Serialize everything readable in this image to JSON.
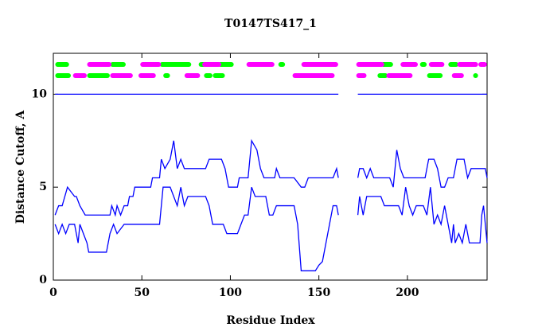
{
  "chart_data": {
    "type": "line",
    "title": "T0147TS417_1",
    "x_label": "Residue Index",
    "y_label": "Distance Cutoff, A",
    "xlim": [
      0,
      245
    ],
    "ylim": [
      0,
      12.2
    ],
    "xticks": [
      0,
      50,
      100,
      150,
      200
    ],
    "yticks": [
      0,
      5,
      10
    ],
    "series": [
      {
        "color": "#0000ff",
        "x": [
          1,
          161,
          166,
          172,
          245
        ],
        "values": [
          10,
          10,
          null,
          10,
          10
        ]
      },
      {
        "color": "#0000ff",
        "x": [
          1,
          3,
          5,
          8,
          12,
          13,
          15,
          18,
          32,
          33,
          35,
          36,
          38,
          40,
          42,
          43,
          45,
          46,
          55,
          56,
          60,
          61,
          63,
          66,
          68,
          70,
          72,
          74,
          76,
          86,
          88,
          95,
          97,
          99,
          104,
          105,
          110,
          112,
          115,
          117,
          119,
          125,
          126,
          128,
          136,
          140,
          142,
          144,
          158,
          160,
          161,
          166,
          172,
          173,
          175,
          177,
          179,
          181,
          190,
          192,
          194,
          196,
          198,
          210,
          212,
          215,
          217,
          219,
          221,
          223,
          226,
          228,
          232,
          234,
          236,
          244,
          245
        ],
        "values": [
          3.5,
          4,
          4,
          5,
          4.5,
          4.5,
          4,
          3.5,
          3.5,
          4,
          3.5,
          4,
          3.5,
          4,
          4,
          4.5,
          4.5,
          5,
          5,
          5.5,
          5.5,
          6.5,
          6,
          6.5,
          7.5,
          6,
          6.5,
          6,
          6,
          6,
          6.5,
          6.5,
          6,
          5,
          5,
          5.5,
          5.5,
          7.5,
          7,
          6,
          5.5,
          5.5,
          6,
          5.5,
          5.5,
          5,
          5,
          5.5,
          5.5,
          6,
          5.5,
          null,
          5.5,
          6,
          6,
          5.5,
          6,
          5.5,
          5.5,
          5,
          7,
          6,
          5.5,
          5.5,
          6.5,
          6.5,
          6,
          5,
          5,
          5.5,
          5.5,
          6.5,
          6.5,
          5.5,
          6,
          6,
          5.5
        ]
      },
      {
        "color": "#0000ff",
        "x": [
          1,
          3,
          5,
          7,
          9,
          12,
          13,
          14,
          15,
          17,
          19,
          20,
          30,
          32,
          34,
          36,
          40,
          60,
          61,
          62,
          66,
          68,
          70,
          72,
          74,
          76,
          84,
          86,
          88,
          90,
          96,
          98,
          104,
          106,
          108,
          110,
          112,
          114,
          120,
          122,
          124,
          126,
          136,
          138,
          140,
          148,
          150,
          152,
          154,
          156,
          158,
          160,
          161,
          166,
          172,
          173,
          175,
          177,
          185,
          187,
          195,
          197,
          199,
          201,
          203,
          205,
          209,
          211,
          213,
          215,
          217,
          219,
          221,
          222,
          224,
          225,
          226,
          227,
          229,
          231,
          233,
          235,
          237,
          241,
          242,
          243,
          244,
          245
        ],
        "values": [
          3,
          2.5,
          3,
          2.5,
          3,
          3,
          2.5,
          2,
          3,
          2.5,
          2,
          1.5,
          1.5,
          2.5,
          3,
          2.5,
          3,
          3,
          4,
          5,
          5,
          4.5,
          4,
          5,
          4,
          4.5,
          4.5,
          4.5,
          4,
          3,
          3,
          2.5,
          2.5,
          3,
          3.5,
          3.5,
          5,
          4.5,
          4.5,
          3.5,
          3.5,
          4,
          4,
          3,
          0.5,
          0.5,
          0.8,
          1,
          2,
          3,
          4,
          4,
          3.5,
          null,
          3.5,
          4.5,
          3.5,
          4.5,
          4.5,
          4,
          4,
          3.5,
          5,
          4,
          3.5,
          4,
          4,
          3.5,
          5,
          3,
          3.5,
          3,
          4,
          3.5,
          2.5,
          2,
          3,
          2,
          2.5,
          2,
          3,
          2,
          2,
          2,
          3.5,
          4,
          3,
          2
        ]
      }
    ],
    "bands": [
      {
        "color": "#00ff00",
        "y": 11.6,
        "ranges": [
          [
            2,
            8
          ],
          [
            33,
            40
          ],
          [
            61,
            77
          ],
          [
            83,
            87
          ],
          [
            94,
            101
          ],
          [
            128,
            130
          ],
          [
            186,
            191
          ],
          [
            208,
            210
          ],
          [
            224,
            228
          ]
        ]
      },
      {
        "color": "#ff00ff",
        "y": 11.6,
        "ranges": [
          [
            20,
            32
          ],
          [
            50,
            60
          ],
          [
            85,
            94
          ],
          [
            110,
            124
          ],
          [
            141,
            160
          ],
          [
            172,
            186
          ],
          [
            197,
            205
          ],
          [
            213,
            220
          ],
          [
            229,
            239
          ],
          [
            241,
            244
          ]
        ]
      },
      {
        "color": "#00ff00",
        "y": 11.0,
        "ranges": [
          [
            2,
            9
          ],
          [
            20,
            31
          ],
          [
            63,
            65
          ],
          [
            86,
            89
          ],
          [
            91,
            96
          ],
          [
            184,
            188
          ],
          [
            212,
            219
          ],
          [
            238,
            239
          ]
        ]
      },
      {
        "color": "#ff00ff",
        "y": 11.0,
        "ranges": [
          [
            12,
            18
          ],
          [
            33,
            44
          ],
          [
            49,
            57
          ],
          [
            75,
            82
          ],
          [
            136,
            158
          ],
          [
            172,
            176
          ],
          [
            189,
            202
          ],
          [
            226,
            231
          ]
        ]
      }
    ]
  }
}
